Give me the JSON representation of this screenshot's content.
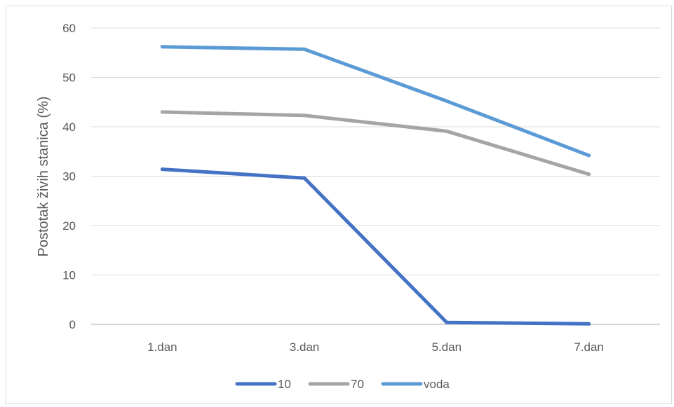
{
  "chart_data": {
    "type": "line",
    "title": "",
    "xlabel": "",
    "ylabel": "Postotak živih stanica (%)",
    "ylim": [
      0,
      60
    ],
    "yticks": [
      0,
      10,
      20,
      30,
      40,
      50,
      60
    ],
    "categories": [
      "1.dan",
      "3.dan",
      "5.dan",
      "7.dan"
    ],
    "grid": true,
    "legend_position": "bottom",
    "series": [
      {
        "name": "10",
        "color": "#4472c4",
        "values": [
          31.4,
          29.6,
          0.4,
          0.1
        ]
      },
      {
        "name": "70",
        "color": "#a5a5a5",
        "values": [
          43.0,
          42.3,
          39.1,
          30.4
        ]
      },
      {
        "name": "voda",
        "color": "#5b9bd5",
        "values": [
          56.2,
          55.7,
          45.2,
          34.2
        ]
      }
    ]
  }
}
